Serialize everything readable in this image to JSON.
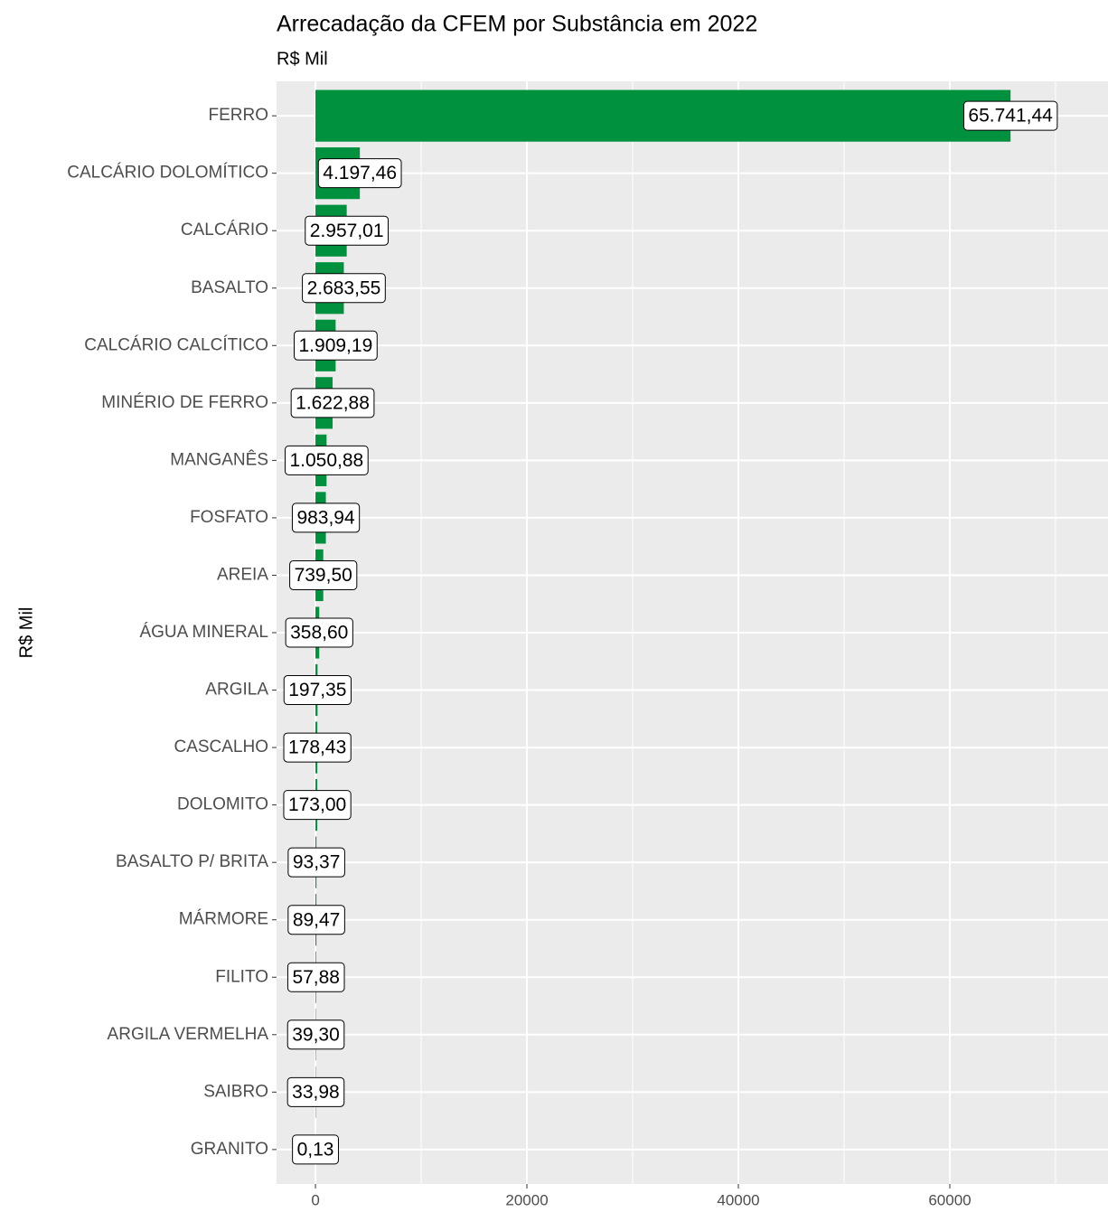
{
  "chart_data": {
    "type": "bar",
    "orientation": "horizontal",
    "title": "Arrecadação da CFEM por Substância em 2022",
    "subtitle": "R$ Mil",
    "ylabel": "R$ Mil",
    "categories": [
      "FERRO",
      "CALCÁRIO DOLOMÍTICO",
      "CALCÁRIO",
      "BASALTO",
      "CALCÁRIO CALCÍTICO",
      "MINÉRIO DE FERRO",
      "MANGANÊS",
      "FOSFATO",
      "AREIA",
      "ÁGUA MINERAL",
      "ARGILA",
      "CASCALHO",
      "DOLOMITO",
      "BASALTO P/ BRITA",
      "MÁRMORE",
      "FILITO",
      "ARGILA VERMELHA",
      "SAIBRO",
      "GRANITO"
    ],
    "values": [
      65741.44,
      4197.46,
      2957.01,
      2683.55,
      1909.19,
      1622.88,
      1050.88,
      983.94,
      739.5,
      358.6,
      197.35,
      178.43,
      173.0,
      93.37,
      89.47,
      57.88,
      39.3,
      33.98,
      0.13
    ],
    "value_labels": [
      "65.741,44",
      "4.197,46",
      "2.957,01",
      "2.683,55",
      "1.909,19",
      "1.622,88",
      "1.050,88",
      "983,94",
      "739,50",
      "358,60",
      "197,35",
      "178,43",
      "173,00",
      "93,37",
      "89,47",
      "57,88",
      "39,30",
      "33,98",
      "0,13"
    ],
    "color": "#00913f",
    "xlim": [
      -3680,
      74960
    ],
    "xticks": [
      0,
      20000,
      40000,
      60000
    ],
    "xminor": [
      10000,
      30000,
      50000,
      70000
    ],
    "grid": true
  }
}
